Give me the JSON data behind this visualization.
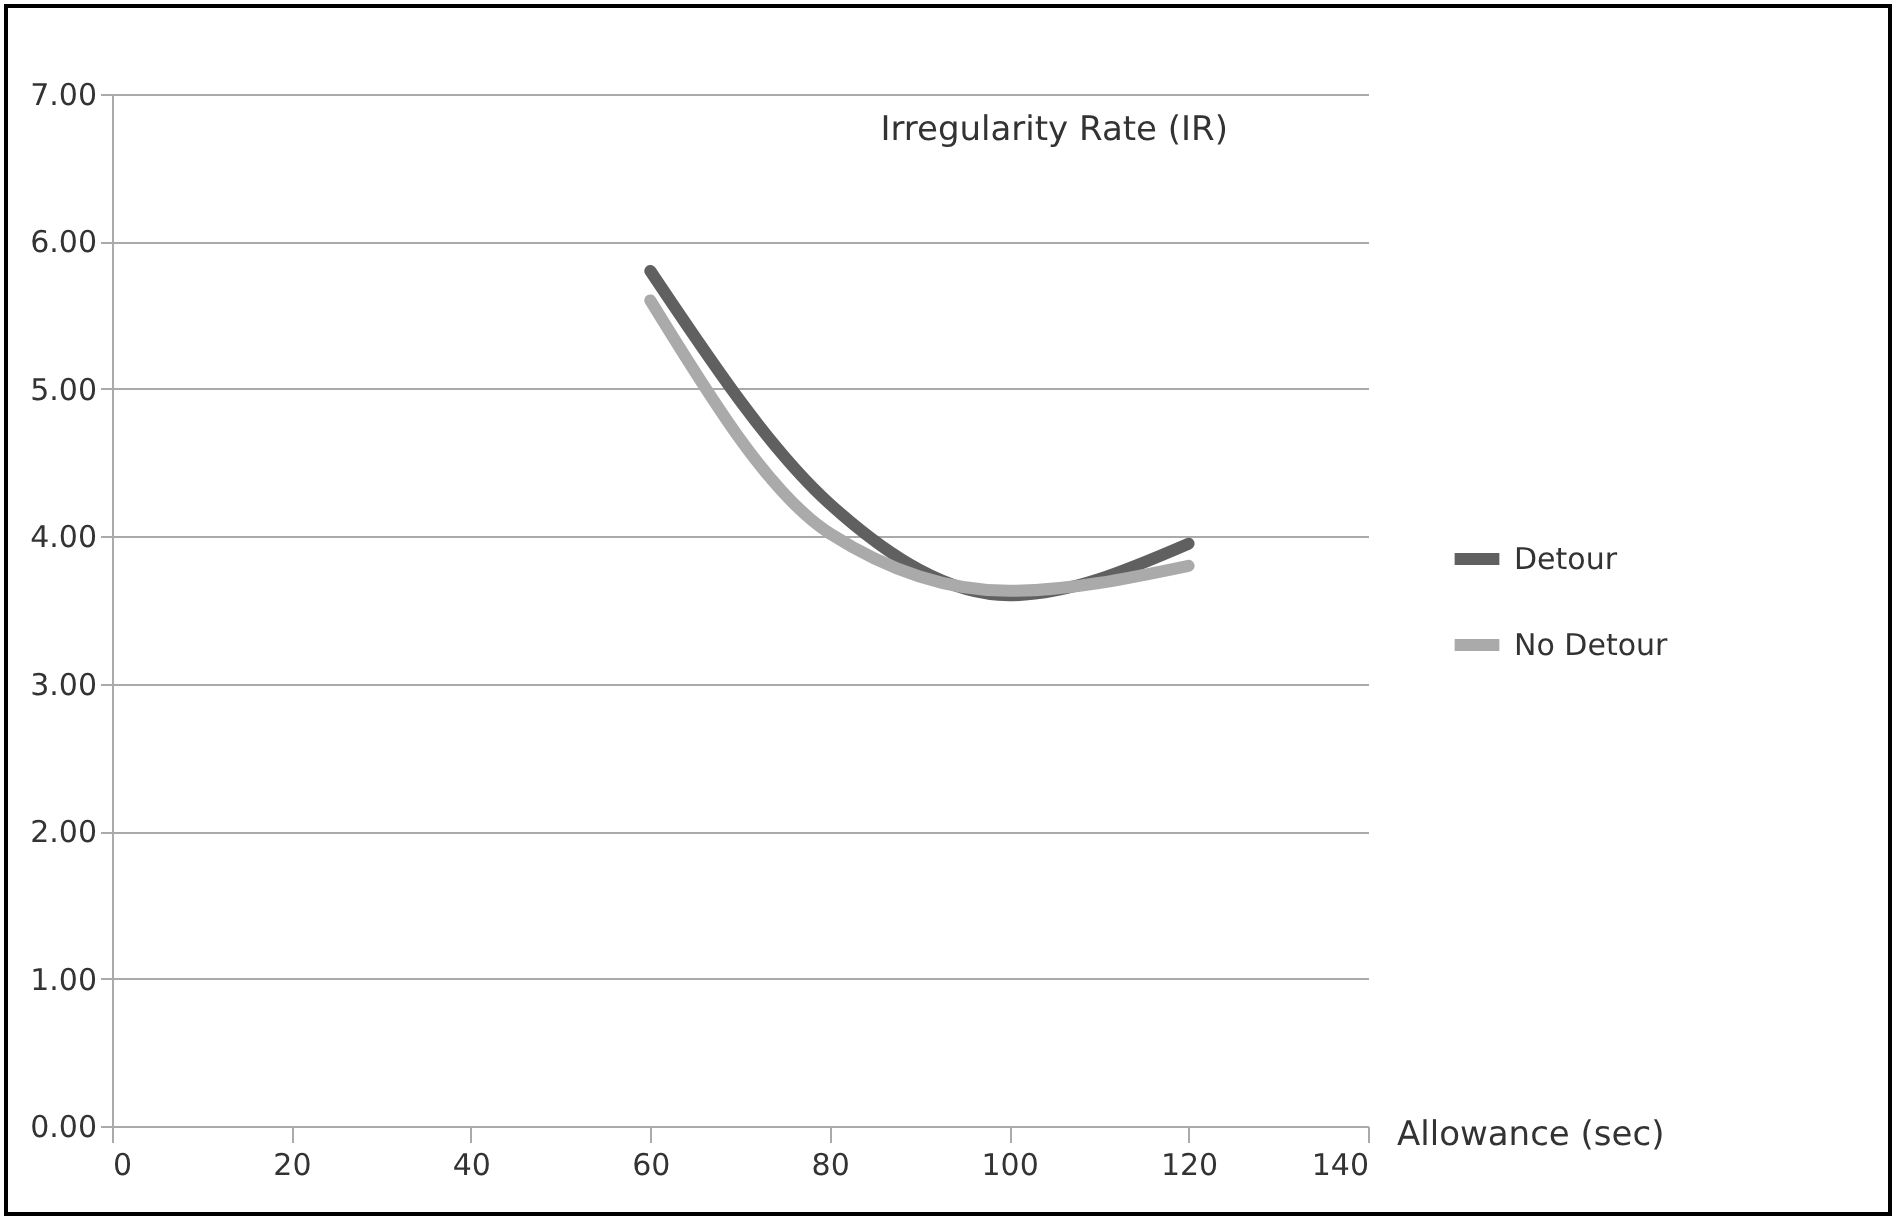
{
  "chart_data": {
    "type": "line",
    "title": "Irregularity Rate (IR)",
    "xlabel": "Allowance (sec)",
    "x": [
      60,
      80,
      100,
      120
    ],
    "series": [
      {
        "name": "Detour",
        "color": "#606060",
        "values": [
          5.8,
          4.22,
          3.6,
          3.95
        ]
      },
      {
        "name": "No Detour",
        "color": "#aaaaaa",
        "values": [
          5.6,
          4.02,
          3.63,
          3.8
        ]
      }
    ],
    "xlim": [
      0,
      140
    ],
    "xticks": [
      0,
      20,
      40,
      60,
      80,
      100,
      120,
      140
    ],
    "ylim": [
      0,
      7
    ],
    "yticks": [
      {
        "value": 0,
        "label": "0.00"
      },
      {
        "value": 1,
        "label": "1.00"
      },
      {
        "value": 2,
        "label": "2.00"
      },
      {
        "value": 3,
        "label": "3.00"
      },
      {
        "value": 4,
        "label": "4.00"
      },
      {
        "value": 5,
        "label": "5.00"
      },
      {
        "value": 6,
        "label": "6.00"
      },
      {
        "value": 7,
        "label": "7.00"
      }
    ],
    "grid": "y",
    "legend": "right",
    "line_style": "solid",
    "marker": "none"
  }
}
